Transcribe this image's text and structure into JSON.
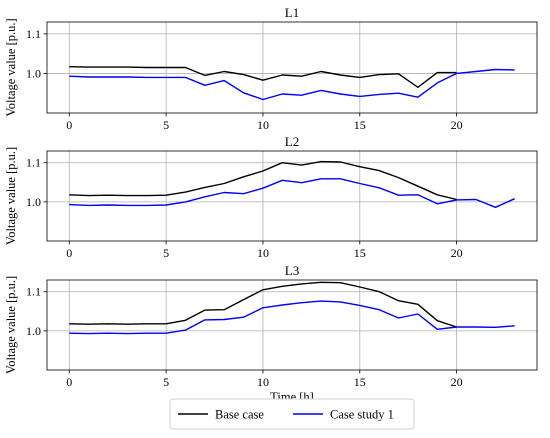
{
  "chart_data": [
    {
      "type": "line",
      "title": "L1",
      "xlabel": "",
      "ylabel": "Voltage value [p.u.]",
      "xlim": [
        -1.15,
        24.15
      ],
      "ylim": [
        0.9,
        1.13
      ],
      "xticks": [
        "0",
        "5",
        "10",
        "15",
        "20"
      ],
      "yticks": [
        "1.0",
        "1.1"
      ],
      "grid": true,
      "series": [
        {
          "name": "Base case",
          "color": "#000000",
          "x": [
            0,
            1,
            2,
            3,
            4,
            5,
            6,
            7,
            8,
            9,
            10,
            11,
            12,
            13,
            14,
            15,
            16,
            17,
            18,
            19,
            20
          ],
          "values": [
            1.017,
            1.016,
            1.016,
            1.016,
            1.015,
            1.015,
            1.015,
            0.995,
            1.005,
            0.997,
            0.983,
            0.996,
            0.993,
            1.005,
            0.996,
            0.99,
            0.997,
            0.999,
            0.965,
            1.002,
            1.002
          ]
        },
        {
          "name": "Case study 1",
          "color": "#0000ee",
          "x": [
            0,
            1,
            2,
            3,
            4,
            5,
            6,
            7,
            8,
            9,
            10,
            11,
            12,
            13,
            14,
            15,
            16,
            17,
            18,
            19,
            20,
            21,
            22,
            23
          ],
          "values": [
            0.993,
            0.991,
            0.991,
            0.991,
            0.99,
            0.99,
            0.99,
            0.97,
            0.982,
            0.951,
            0.934,
            0.948,
            0.945,
            0.957,
            0.948,
            0.942,
            0.947,
            0.95,
            0.94,
            0.976,
            1.0,
            1.005,
            1.01,
            1.009
          ]
        }
      ]
    },
    {
      "type": "line",
      "title": "L2",
      "xlabel": "",
      "ylabel": "Voltage value [p.u.]",
      "xlim": [
        -1.15,
        24.15
      ],
      "ylim": [
        0.9,
        1.13
      ],
      "xticks": [
        "0",
        "5",
        "10",
        "15",
        "20"
      ],
      "yticks": [
        "1.0",
        "1.1"
      ],
      "grid": true,
      "series": [
        {
          "name": "Base case",
          "color": "#000000",
          "x": [
            0,
            1,
            2,
            3,
            4,
            5,
            6,
            7,
            8,
            9,
            10,
            11,
            12,
            13,
            14,
            15,
            16,
            17,
            18,
            19,
            20
          ],
          "values": [
            1.018,
            1.016,
            1.017,
            1.016,
            1.016,
            1.017,
            1.025,
            1.037,
            1.047,
            1.064,
            1.079,
            1.1,
            1.094,
            1.103,
            1.102,
            1.09,
            1.08,
            1.062,
            1.04,
            1.018,
            1.006
          ]
        },
        {
          "name": "Case study 1",
          "color": "#0000ee",
          "x": [
            0,
            1,
            2,
            3,
            4,
            5,
            6,
            7,
            8,
            9,
            10,
            11,
            12,
            13,
            14,
            15,
            16,
            17,
            18,
            19,
            20,
            21,
            22,
            23
          ],
          "values": [
            0.993,
            0.991,
            0.992,
            0.991,
            0.991,
            0.992,
            1.0,
            1.013,
            1.024,
            1.021,
            1.035,
            1.055,
            1.049,
            1.059,
            1.059,
            1.047,
            1.036,
            1.017,
            1.018,
            0.995,
            1.005,
            1.006,
            0.986,
            1.008
          ]
        }
      ]
    },
    {
      "type": "line",
      "title": "L3",
      "xlabel": "Time [h]",
      "ylabel": "Voltage value [p.u.]",
      "xlim": [
        -1.15,
        24.15
      ],
      "ylim": [
        0.9,
        1.13
      ],
      "xticks": [
        "0",
        "5",
        "10",
        "15",
        "20"
      ],
      "yticks": [
        "1.0",
        "1.1"
      ],
      "grid": true,
      "series": [
        {
          "name": "Base case",
          "color": "#000000",
          "x": [
            0,
            1,
            2,
            3,
            4,
            5,
            6,
            7,
            8,
            9,
            10,
            11,
            12,
            13,
            14,
            15,
            16,
            17,
            18,
            19,
            20
          ],
          "values": [
            1.018,
            1.017,
            1.018,
            1.017,
            1.018,
            1.018,
            1.027,
            1.053,
            1.054,
            1.08,
            1.105,
            1.114,
            1.12,
            1.124,
            1.123,
            1.112,
            1.1,
            1.077,
            1.068,
            1.026,
            1.01
          ]
        },
        {
          "name": "Case study 1",
          "color": "#0000ee",
          "x": [
            0,
            1,
            2,
            3,
            4,
            5,
            6,
            7,
            8,
            9,
            10,
            11,
            12,
            13,
            14,
            15,
            16,
            17,
            18,
            19,
            20,
            21,
            22,
            23
          ],
          "values": [
            0.994,
            0.993,
            0.994,
            0.993,
            0.994,
            0.994,
            1.002,
            1.028,
            1.029,
            1.035,
            1.059,
            1.066,
            1.072,
            1.076,
            1.074,
            1.065,
            1.054,
            1.033,
            1.043,
            1.004,
            1.01,
            1.01,
            1.009,
            1.013
          ]
        }
      ]
    }
  ],
  "legend": {
    "placement": "bottom",
    "entries": [
      {
        "label": "Base case",
        "color": "#000000"
      },
      {
        "label": "Case study 1",
        "color": "#0000ee"
      }
    ]
  }
}
